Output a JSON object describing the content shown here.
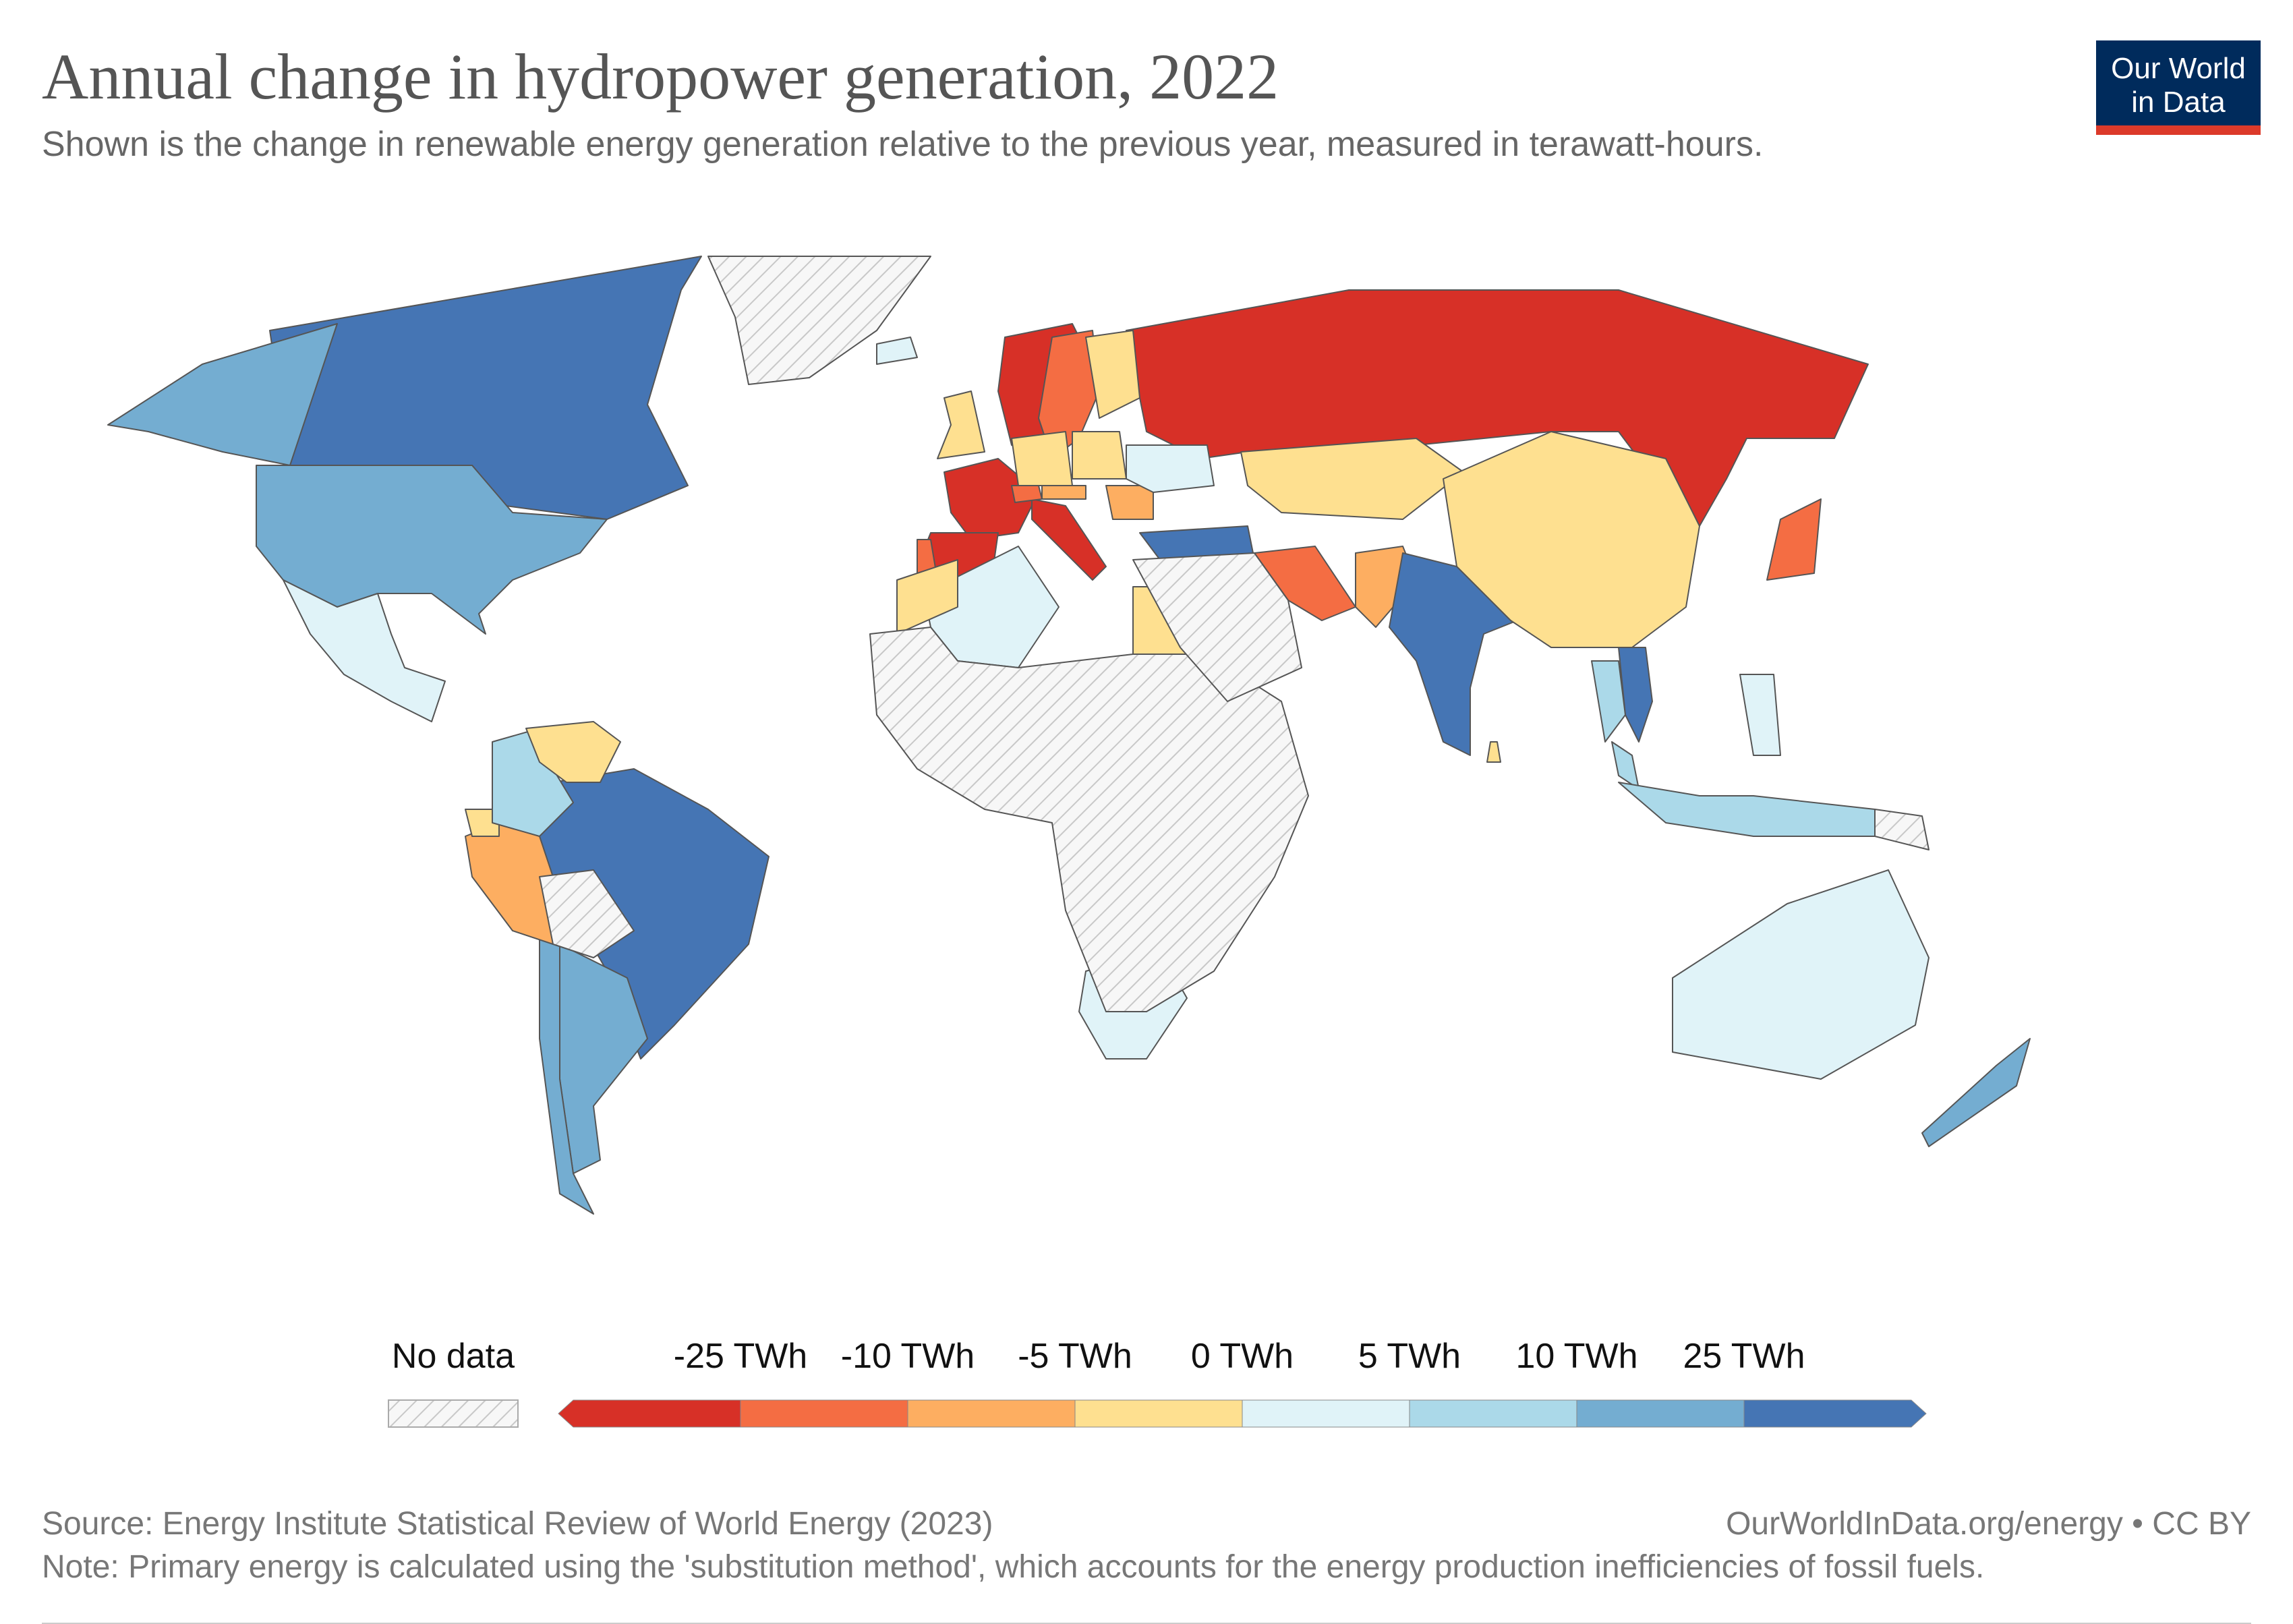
{
  "header": {
    "title": "Annual change in hydropower generation, 2022",
    "subtitle": "Shown is the change in renewable energy generation relative to the previous year, measured in terawatt-hours."
  },
  "logo": {
    "line1": "Our World",
    "line2": "in Data"
  },
  "colors": {
    "background": "#ffffff",
    "no_data_fill": "#f2f2f2",
    "bins": [
      "#d73027",
      "#f46d43",
      "#fdae61",
      "#fee090",
      "#e0f3f8",
      "#abd9e9",
      "#74add1",
      "#4575b4"
    ]
  },
  "legend": {
    "no_data_label": "No data",
    "tick_labels": [
      "-25 TWh",
      "-10 TWh",
      "-5 TWh",
      "0 TWh",
      "5 TWh",
      "10 TWh",
      "25 TWh"
    ]
  },
  "chart_data": {
    "type": "choropleth",
    "title": "Annual change in hydropower generation, 2022",
    "unit": "TWh",
    "bin_edges": [
      -25,
      -10,
      -5,
      0,
      5,
      10,
      25
    ],
    "regions": [
      {
        "name": "Canada",
        "bin": 7
      },
      {
        "name": "United States",
        "bin": 6
      },
      {
        "name": "Alaska",
        "bin": 6
      },
      {
        "name": "Mexico",
        "bin": 4
      },
      {
        "name": "Greenland",
        "bin": -1
      },
      {
        "name": "Brazil",
        "bin": 7
      },
      {
        "name": "Argentina",
        "bin": 6
      },
      {
        "name": "Chile",
        "bin": 6
      },
      {
        "name": "Peru",
        "bin": 2
      },
      {
        "name": "Ecuador",
        "bin": 3
      },
      {
        "name": "Colombia",
        "bin": 5
      },
      {
        "name": "Venezuela",
        "bin": 3
      },
      {
        "name": "Bolivia",
        "bin": -1
      },
      {
        "name": "Russia",
        "bin": 0
      },
      {
        "name": "Norway",
        "bin": 0
      },
      {
        "name": "Sweden",
        "bin": 1
      },
      {
        "name": "Finland",
        "bin": 3
      },
      {
        "name": "Iceland",
        "bin": 4
      },
      {
        "name": "United Kingdom",
        "bin": 3
      },
      {
        "name": "France",
        "bin": 0
      },
      {
        "name": "Spain",
        "bin": 0
      },
      {
        "name": "Portugal",
        "bin": 1
      },
      {
        "name": "Italy",
        "bin": 0
      },
      {
        "name": "Germany",
        "bin": 3
      },
      {
        "name": "Switzerland",
        "bin": 1
      },
      {
        "name": "Austria",
        "bin": 2
      },
      {
        "name": "Poland",
        "bin": 3
      },
      {
        "name": "Romania",
        "bin": 2
      },
      {
        "name": "Ukraine",
        "bin": 4
      },
      {
        "name": "Turkey",
        "bin": 7
      },
      {
        "name": "Kazakhstan",
        "bin": 3
      },
      {
        "name": "Iran",
        "bin": 1
      },
      {
        "name": "Pakistan",
        "bin": 2
      },
      {
        "name": "India",
        "bin": 7
      },
      {
        "name": "China",
        "bin": 3
      },
      {
        "name": "Japan",
        "bin": 1
      },
      {
        "name": "Vietnam",
        "bin": 7
      },
      {
        "name": "Thailand",
        "bin": 5
      },
      {
        "name": "Malaysia",
        "bin": 5
      },
      {
        "name": "Indonesia",
        "bin": 5
      },
      {
        "name": "Philippines",
        "bin": 4
      },
      {
        "name": "Sri Lanka",
        "bin": 3
      },
      {
        "name": "Egypt",
        "bin": 3
      },
      {
        "name": "Algeria",
        "bin": 4
      },
      {
        "name": "Morocco",
        "bin": 3
      },
      {
        "name": "South Africa",
        "bin": 4
      },
      {
        "name": "Africa (other)",
        "bin": -1
      },
      {
        "name": "Middle East (other)",
        "bin": -1
      },
      {
        "name": "Australia",
        "bin": 4
      },
      {
        "name": "New Zealand",
        "bin": 6
      },
      {
        "name": "Papua New Guinea",
        "bin": -1
      }
    ]
  },
  "footer": {
    "source": "Source: Energy Institute Statistical Review of World Energy (2023)",
    "note": "Note: Primary energy is calculated using the 'substitution method', which accounts for the energy production inefficiencies of fossil fuels.",
    "url": "OurWorldInData.org/energy • CC BY"
  }
}
